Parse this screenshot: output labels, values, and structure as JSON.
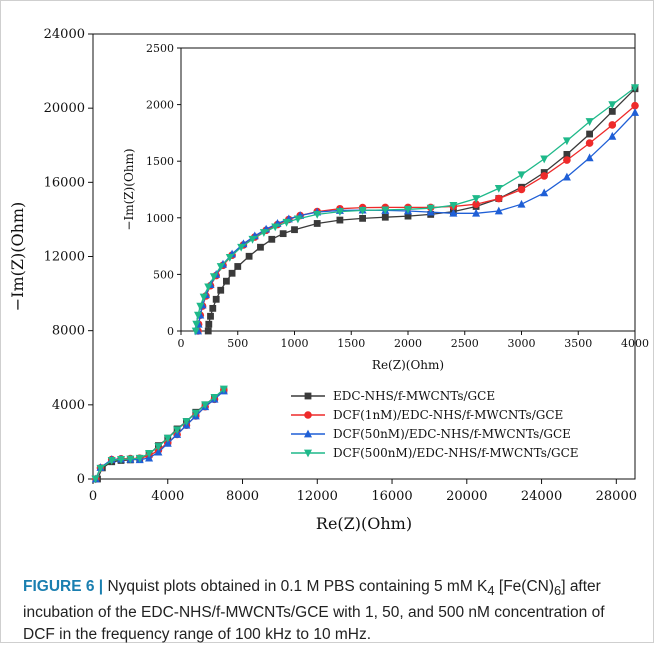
{
  "chart_data": [
    {
      "type": "line",
      "role": "main",
      "xlabel": "Re(Z)(Ohm)",
      "ylabel": "−Im(Z)(Ohm)",
      "xlim": [
        0,
        29000
      ],
      "ylim": [
        0,
        24000
      ],
      "xticks": [
        0,
        4000,
        8000,
        12000,
        16000,
        20000,
        24000,
        28000
      ],
      "yticks": [
        0,
        4000,
        8000,
        12000,
        16000,
        20000,
        24000
      ],
      "legend_position": "lower-right",
      "series": [
        {
          "name": "EDC-NHS/f-MWCNTs/GCE",
          "color": "#3a3a3a",
          "marker": "square",
          "x": [
            240,
            500,
            1000,
            1500,
            2000,
            2500,
            3000,
            3500,
            4000,
            4500,
            5000,
            5500,
            6000,
            6500,
            7000
          ],
          "y": [
            0,
            600,
            930,
            1000,
            1030,
            1080,
            1330,
            1800,
            2200,
            2700,
            3100,
            3600,
            4000,
            4400,
            4800
          ]
        },
        {
          "name": "DCF(1nM)/EDC-NHS/f-MWCNTs/GCE",
          "color": "#ee2a2a",
          "marker": "circle",
          "x": [
            150,
            400,
            1000,
            1500,
            2000,
            2500,
            3000,
            3500,
            4000,
            4500,
            5000,
            5500,
            6000,
            6500,
            7000
          ],
          "y": [
            0,
            600,
            1050,
            1090,
            1100,
            1120,
            1250,
            1550,
            1950,
            2400,
            2900,
            3400,
            3900,
            4300,
            4800
          ]
        },
        {
          "name": "DCF(50nM)/EDC-NHS/f-MWCNTs/GCE",
          "color": "#1f5fd6",
          "marker": "triangle-up",
          "x": [
            150,
            400,
            1000,
            1500,
            2000,
            2500,
            3000,
            3500,
            4000,
            4500,
            5000,
            5500,
            6000,
            6500,
            7000
          ],
          "y": [
            0,
            620,
            1050,
            1070,
            1060,
            1040,
            1130,
            1450,
            1920,
            2400,
            2900,
            3400,
            3900,
            4300,
            4750
          ]
        },
        {
          "name": "DCF(500nM)/EDC-NHS/f-MWCNTs/GCE",
          "color": "#1fb98a",
          "marker": "triangle-down",
          "x": [
            130,
            400,
            1000,
            1500,
            2000,
            2500,
            3000,
            3500,
            4000,
            4500,
            5000,
            5500,
            6000,
            6500,
            7000
          ],
          "y": [
            0,
            580,
            1000,
            1060,
            1080,
            1120,
            1380,
            1750,
            2200,
            2650,
            3100,
            3550,
            4000,
            4400,
            4850
          ]
        }
      ]
    },
    {
      "type": "line",
      "role": "inset",
      "xlabel": "Re(Z)(Ohm)",
      "ylabel": "−Im(Z)(Ohm)",
      "xlim": [
        0,
        4000
      ],
      "ylim": [
        0,
        2500
      ],
      "xticks": [
        0,
        500,
        1000,
        1500,
        2000,
        2500,
        3000,
        3500,
        4000
      ],
      "yticks": [
        0,
        500,
        1000,
        1500,
        2000,
        2500
      ],
      "series": [
        {
          "name": "EDC-NHS/f-MWCNTs/GCE",
          "color": "#3a3a3a",
          "marker": "square",
          "x": [
            240,
            245,
            260,
            280,
            310,
            350,
            400,
            450,
            500,
            600,
            700,
            800,
            900,
            1000,
            1200,
            1400,
            1600,
            1800,
            2000,
            2200,
            2400,
            2600,
            2800,
            3000,
            3200,
            3400,
            3600,
            3800,
            4000
          ],
          "y": [
            0,
            60,
            130,
            200,
            280,
            360,
            440,
            510,
            570,
            660,
            740,
            810,
            860,
            895,
            950,
            980,
            995,
            1005,
            1015,
            1030,
            1055,
            1100,
            1170,
            1270,
            1400,
            1560,
            1740,
            1940,
            2140
          ]
        },
        {
          "name": "DCF(1nM)/EDC-NHS/f-MWCNTs/GCE",
          "color": "#ee2a2a",
          "marker": "circle",
          "x": [
            150,
            155,
            170,
            190,
            220,
            260,
            310,
            370,
            450,
            550,
            650,
            750,
            850,
            950,
            1050,
            1200,
            1400,
            1600,
            1800,
            2000,
            2200,
            2400,
            2600,
            2800,
            3000,
            3200,
            3400,
            3600,
            3800,
            4000
          ],
          "y": [
            0,
            60,
            140,
            220,
            310,
            400,
            490,
            580,
            670,
            760,
            830,
            890,
            940,
            985,
            1020,
            1055,
            1080,
            1090,
            1092,
            1092,
            1092,
            1100,
            1120,
            1170,
            1250,
            1370,
            1510,
            1660,
            1820,
            1990
          ]
        },
        {
          "name": "DCF(50nM)/EDC-NHS/f-MWCNTs/GCE",
          "color": "#1f5fd6",
          "marker": "triangle-up",
          "x": [
            150,
            155,
            170,
            190,
            220,
            260,
            310,
            370,
            450,
            550,
            650,
            750,
            850,
            950,
            1050,
            1200,
            1400,
            1600,
            1800,
            2000,
            2200,
            2400,
            2600,
            2800,
            3000,
            3200,
            3400,
            3600,
            3800,
            4000
          ],
          "y": [
            0,
            60,
            140,
            230,
            320,
            410,
            500,
            590,
            680,
            770,
            840,
            900,
            950,
            990,
            1020,
            1050,
            1065,
            1068,
            1065,
            1060,
            1050,
            1040,
            1040,
            1060,
            1120,
            1220,
            1360,
            1530,
            1720,
            1930
          ]
        },
        {
          "name": "DCF(500nM)/EDC-NHS/f-MWCNTs/GCE",
          "color": "#1fb98a",
          "marker": "triangle-down",
          "x": [
            130,
            135,
            150,
            170,
            200,
            240,
            290,
            350,
            430,
            530,
            630,
            730,
            830,
            930,
            1030,
            1200,
            1400,
            1600,
            1800,
            2000,
            2200,
            2400,
            2600,
            2800,
            3000,
            3200,
            3400,
            3600,
            3800,
            4000
          ],
          "y": [
            0,
            60,
            140,
            220,
            300,
            390,
            480,
            570,
            650,
            740,
            810,
            870,
            920,
            960,
            990,
            1030,
            1055,
            1065,
            1070,
            1075,
            1085,
            1110,
            1170,
            1260,
            1380,
            1520,
            1680,
            1850,
            2000,
            2150
          ]
        }
      ]
    }
  ],
  "caption": {
    "label": "FIGURE 6 |",
    "text_before_sub": " Nyquist plots obtained in 0.1 M PBS containing 5 mM K",
    "sub1": "4",
    "text_mid": " [Fe(CN)",
    "sub2": "6",
    "text_after": "] after incubation of the EDC-NHS/f-MWCNTs/GCE with 1, 50, and 500 nM concentration of DCF in the frequency range of 100 kHz to 10 mHz."
  }
}
